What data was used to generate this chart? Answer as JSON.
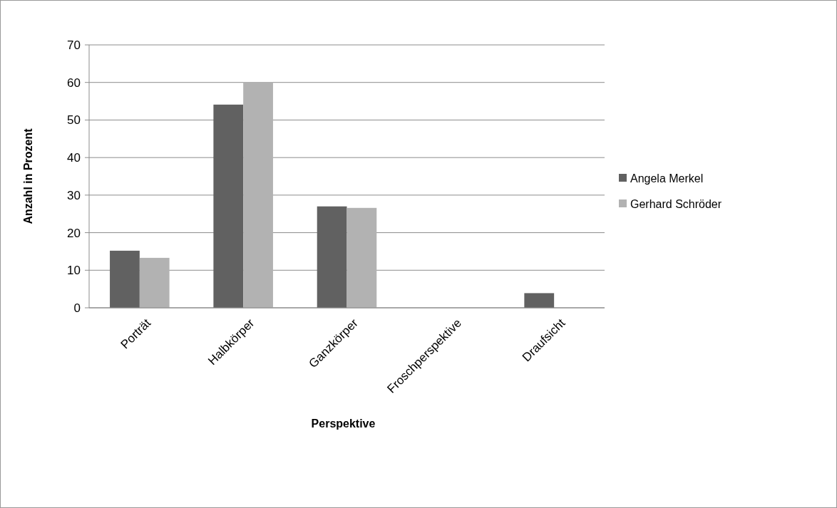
{
  "chart_data": {
    "type": "bar",
    "xlabel": "Perspektive",
    "ylabel": "Anzahl in Prozent",
    "categories": [
      "Porträt",
      "Halbkörper",
      "Ganzkörper",
      "Froschperspektive",
      "Draufsicht"
    ],
    "series": [
      {
        "name": "Angela Merkel",
        "color": "#616161",
        "values": [
          15.2,
          54.1,
          27,
          0,
          3.9
        ]
      },
      {
        "name": "Gerhard Schröder",
        "color": "#b2b2b2",
        "values": [
          13.3,
          60.1,
          26.6,
          0,
          0
        ]
      }
    ],
    "ylim": [
      0,
      70
    ],
    "yticks": [
      0,
      10,
      20,
      30,
      40,
      50,
      60,
      70
    ],
    "grid": "y",
    "legend": "right"
  }
}
